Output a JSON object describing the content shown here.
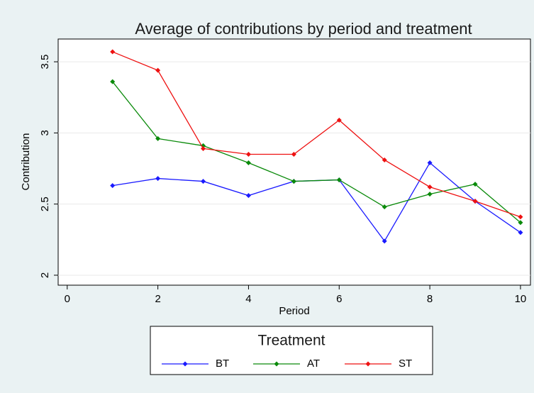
{
  "chart_data": {
    "type": "line",
    "title": "Average of contributions by period and treatment",
    "x_label": "Period",
    "y_label": "Contribution",
    "x": [
      1,
      2,
      3,
      4,
      5,
      6,
      7,
      8,
      9,
      10
    ],
    "series": [
      {
        "name": "BT",
        "color": "#1a1aff",
        "values": [
          2.63,
          2.68,
          2.66,
          2.56,
          2.66,
          2.67,
          2.24,
          2.79,
          2.52,
          2.3
        ]
      },
      {
        "name": "AT",
        "color": "#0a8a0a",
        "values": [
          3.36,
          2.96,
          2.91,
          2.79,
          2.66,
          2.67,
          2.48,
          2.57,
          2.64,
          2.37
        ]
      },
      {
        "name": "ST",
        "color": "#ee1111",
        "values": [
          3.57,
          3.44,
          2.89,
          2.85,
          2.85,
          3.09,
          2.81,
          2.62,
          2.52,
          2.41
        ]
      }
    ],
    "xlim": [
      -0.2,
      10.22
    ],
    "xticks": [
      0,
      2,
      4,
      6,
      8,
      10
    ],
    "ylim": [
      1.93,
      3.66
    ],
    "yticks": [
      2,
      2.5,
      3,
      3.5
    ],
    "grid": true,
    "legend": {
      "title": "Treatment",
      "position": "bottom"
    }
  }
}
